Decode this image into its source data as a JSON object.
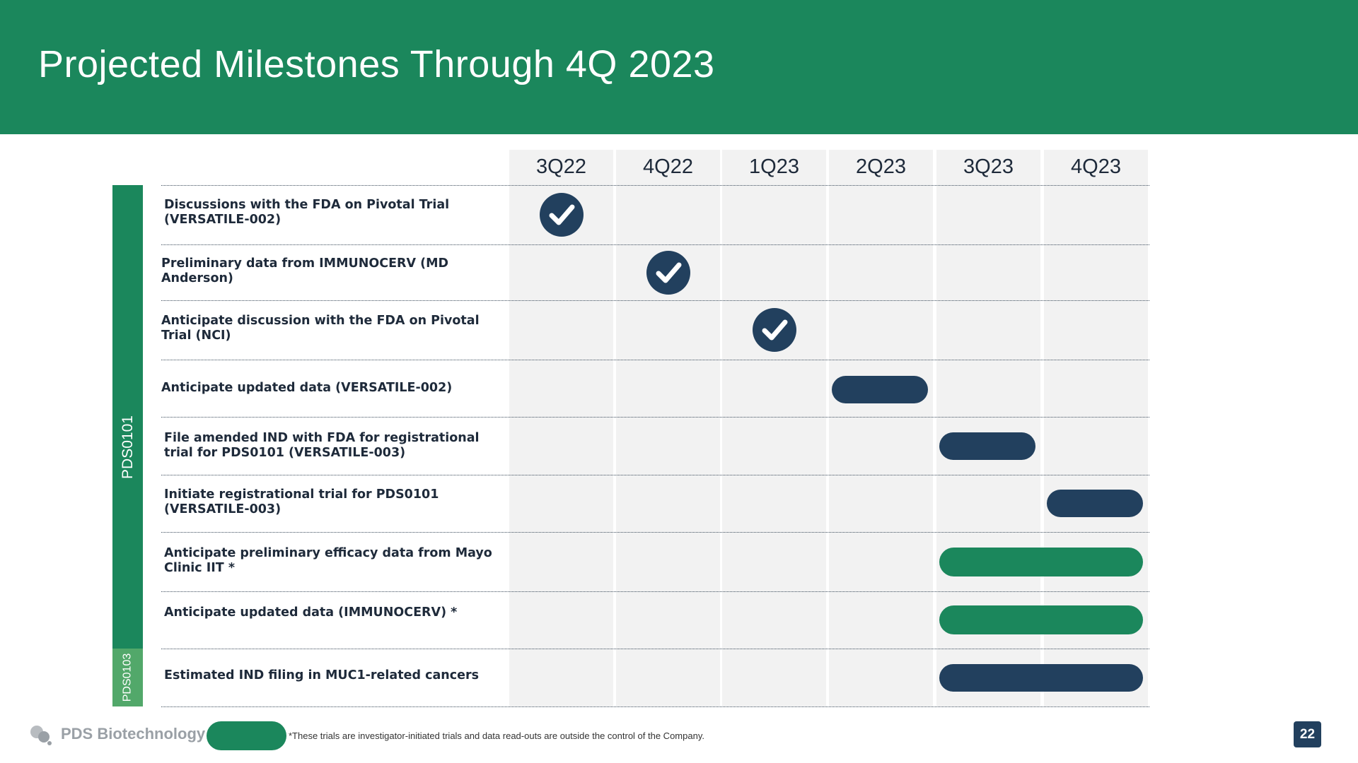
{
  "header": {
    "title": "Projected Milestones Through 4Q 2023"
  },
  "timeline": {
    "quarters": [
      "3Q22",
      "4Q22",
      "1Q23",
      "2Q23",
      "3Q23",
      "4Q23"
    ],
    "milestones": [
      {
        "label": "Discussions with the FDA on Pivotal Trial (VERSATILE-002)",
        "status": "completed",
        "quarters": [
          "3Q22"
        ]
      },
      {
        "label": "Preliminary data from IMMUNOCERV (MD Anderson)",
        "status": "completed",
        "quarters": [
          "4Q22"
        ]
      },
      {
        "label": "Anticipate discussion with the FDA on Pivotal Trial (NCI)",
        "status": "completed",
        "quarters": [
          "1Q23"
        ]
      },
      {
        "label": "Anticipate updated data (VERSATILE-002)",
        "status": "planned",
        "quarters": [
          "2Q23"
        ]
      },
      {
        "label": "File amended IND with FDA for registrational trial for PDS0101 (VERSATILE-003)",
        "status": "planned",
        "quarters": [
          "3Q23"
        ]
      },
      {
        "label": "Initiate registrational trial for PDS0101 (VERSATILE-003)",
        "status": "planned",
        "quarters": [
          "4Q23"
        ]
      },
      {
        "label": "Anticipate preliminary efficacy data from Mayo Clinic IIT *",
        "status": "investigator-initiated",
        "quarters": [
          "3Q23",
          "4Q23"
        ]
      },
      {
        "label": "Anticipate updated data (IMMUNOCERV) *",
        "status": "investigator-initiated",
        "quarters": [
          "3Q23",
          "4Q23"
        ]
      },
      {
        "label": "Estimated IND filing in MUC1-related cancers",
        "status": "planned",
        "quarters": [
          "3Q23",
          "4Q23"
        ]
      }
    ],
    "programs": [
      {
        "label": "PDS0101",
        "rows": [
          0,
          7
        ]
      },
      {
        "label": "PDS0103",
        "rows": [
          8,
          8
        ]
      }
    ],
    "colors": {
      "completed": "#22405e",
      "planned": "#22405e",
      "investigator_initiated": "#1b875c",
      "header": "#1b875c"
    }
  },
  "footer": {
    "brand": "PDS Biotechnology",
    "footnote": "*These trials are investigator-initiated trials and data read-outs are outside the control of the Company.",
    "page_number": "22"
  },
  "icons": {
    "milestone_complete": "check-circle-icon",
    "logo": "pds-logo-icon"
  }
}
